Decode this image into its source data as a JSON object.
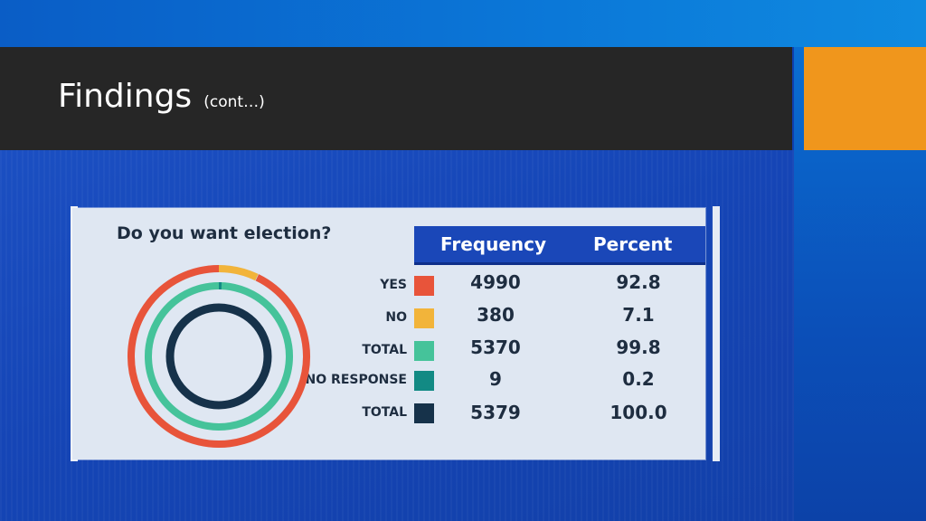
{
  "slide": {
    "title": "Findings",
    "subtitle": "(cont…)"
  },
  "colors": {
    "title_bar": "#262626",
    "accent_square": "#f0961c",
    "background": "#1545b6",
    "table_header": "#1a47b8"
  },
  "chart_data": {
    "type": "table",
    "title": "Do you want election?",
    "columns": [
      "Frequency",
      "Percent"
    ],
    "rows": [
      {
        "label": "YES",
        "frequency": "4990",
        "percent": "92.8",
        "color": "#e8543a"
      },
      {
        "label": "NO",
        "frequency": "380",
        "percent": "7.1",
        "color": "#f2b43a"
      },
      {
        "label": "TOTAL",
        "frequency": "5370",
        "percent": "99.8",
        "color": "#45c39a"
      },
      {
        "label": "NO RESPONSE",
        "frequency": "9",
        "percent": "0.2",
        "color": "#128a84"
      },
      {
        "label": "TOTAL",
        "frequency": "5379",
        "percent": "100.0",
        "color": "#16324a"
      }
    ],
    "rings": [
      {
        "series": "YES",
        "percent": 92.8,
        "start_percent": 0,
        "color": "#e8543a",
        "ring": 1
      },
      {
        "series": "NO",
        "percent": 7.1,
        "start_percent": 0,
        "color": "#f2b43a",
        "ring": 1
      },
      {
        "series": "TOTAL",
        "percent": 99.8,
        "start_percent": 0,
        "color": "#45c39a",
        "ring": 2
      },
      {
        "series": "NO RESPONSE",
        "percent": 0.2,
        "start_percent": 0,
        "color": "#128a84",
        "ring": 2
      },
      {
        "series": "TOTAL",
        "percent": 100.0,
        "start_percent": 0,
        "color": "#16324a",
        "ring": 3
      }
    ]
  }
}
